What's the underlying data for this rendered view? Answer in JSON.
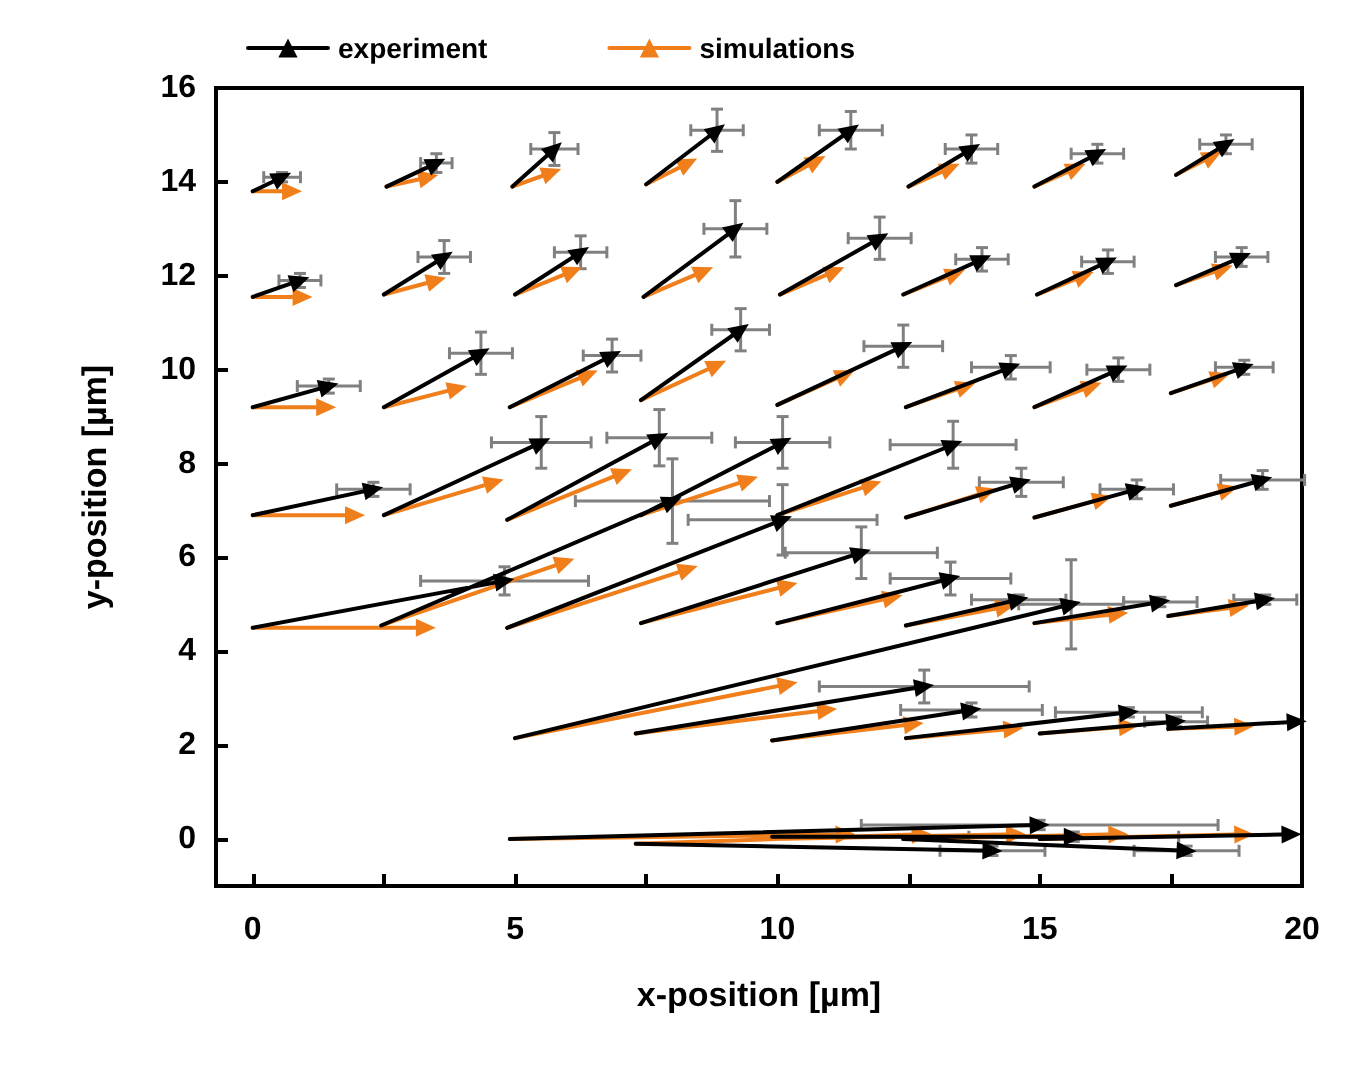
{
  "chart_data": {
    "type": "line",
    "xlabel": "x-position [µm]",
    "ylabel": "y-position [µm]",
    "xlim": [
      -0.7,
      20
    ],
    "xticks": [
      0,
      {
        "value": 2.5,
        "label": null
      },
      5,
      {
        "value": 7.5,
        "label": null
      },
      10,
      {
        "value": 12.5,
        "label": null
      },
      15,
      {
        "value": 17.5,
        "label": null
      },
      20
    ],
    "ylim": [
      -1,
      16
    ],
    "yticks": [
      0,
      2,
      4,
      6,
      8,
      10,
      12,
      14,
      16
    ],
    "legend": "top left",
    "line_style": "solid",
    "series": [
      {
        "name": "experiment",
        "color": "#000000",
        "x": [
          0,
          0.56,
          null,
          2.55,
          3.5,
          null,
          4.95,
          5.75,
          null,
          7.5,
          8.85,
          null,
          10,
          11.4,
          null,
          12.5,
          13.7,
          null,
          14.9,
          16.1,
          null,
          17.6,
          18.55,
          null,
          0,
          0.9,
          null,
          2.5,
          3.65,
          null,
          5,
          6.25,
          null,
          7.45,
          9.2,
          null,
          10.05,
          11.95,
          null,
          12.4,
          13.9,
          null,
          14.95,
          16.3,
          null,
          17.6,
          18.85,
          null,
          0,
          1.45,
          null,
          2.5,
          4.35,
          null,
          4.9,
          6.85,
          null,
          7.4,
          9.3,
          null,
          10,
          12.4,
          null,
          12.45,
          14.45,
          null,
          14.9,
          16.5,
          null,
          17.5,
          18.9,
          null,
          0,
          2.3,
          null,
          2.5,
          5.5,
          null,
          4.85,
          7.75,
          null,
          7.4,
          10.1,
          null,
          10,
          13.35,
          null,
          12.45,
          14.65,
          null,
          14.9,
          16.85,
          null,
          17.5,
          19.25,
          null,
          0,
          4.8,
          null,
          2.45,
          8,
          null,
          4.85,
          10.1,
          null,
          7.4,
          11.6,
          null,
          10,
          13.3,
          null,
          12.45,
          14.6,
          null,
          14.9,
          17.3,
          null,
          17.45,
          19.3,
          null,
          5,
          15.6,
          null,
          7.3,
          12.8,
          null,
          9.9,
          13.7,
          null,
          12.45,
          16.7,
          null,
          15,
          17.6,
          null,
          17.45,
          19.9,
          null,
          4.9,
          15,
          null,
          7.3,
          14.1,
          null,
          9.9,
          15.65,
          null,
          12.4,
          17.8,
          null,
          15,
          19.8
        ],
        "values": [
          13.8,
          14.1,
          null,
          13.9,
          14.4,
          null,
          13.9,
          14.7,
          null,
          13.95,
          15.1,
          null,
          14,
          15.1,
          null,
          13.9,
          14.7,
          null,
          13.9,
          14.6,
          null,
          14.15,
          14.8,
          null,
          11.55,
          11.9,
          null,
          11.6,
          12.4,
          null,
          11.6,
          12.5,
          null,
          11.55,
          13,
          null,
          11.6,
          12.8,
          null,
          11.6,
          12.35,
          null,
          11.6,
          12.3,
          null,
          11.8,
          12.4,
          null,
          9.2,
          9.65,
          null,
          9.2,
          10.35,
          null,
          9.2,
          10.3,
          null,
          9.35,
          10.85,
          null,
          9.25,
          10.5,
          null,
          9.2,
          10.05,
          null,
          9.2,
          10,
          null,
          9.5,
          10.05,
          null,
          6.9,
          7.45,
          null,
          6.9,
          8.45,
          null,
          6.8,
          8.55,
          null,
          6.9,
          8.45,
          null,
          6.9,
          8.4,
          null,
          6.85,
          7.6,
          null,
          6.85,
          7.45,
          null,
          7.1,
          7.65,
          null,
          4.5,
          5.5,
          null,
          4.55,
          7.2,
          null,
          4.5,
          6.8,
          null,
          4.6,
          6.1,
          null,
          4.6,
          5.55,
          null,
          4.55,
          5.1,
          null,
          4.6,
          5.05,
          null,
          4.75,
          5.1,
          null,
          2.15,
          5,
          null,
          2.25,
          3.25,
          null,
          2.1,
          2.75,
          null,
          2.15,
          2.7,
          null,
          2.25,
          2.5,
          null,
          2.35,
          2.5,
          null,
          0,
          0.3,
          null,
          -0.1,
          -0.25,
          null,
          0.05,
          0.05,
          null,
          0,
          -0.25,
          null,
          0,
          0.1
        ],
        "xerrors": [
          null,
          0.35,
          null,
          null,
          0.3,
          null,
          null,
          0.45,
          null,
          null,
          0.5,
          null,
          null,
          0.6,
          null,
          null,
          0.5,
          null,
          null,
          0.5,
          null,
          null,
          0.5,
          null,
          null,
          0.4,
          null,
          null,
          0.5,
          null,
          null,
          0.5,
          null,
          null,
          0.6,
          null,
          null,
          0.6,
          null,
          null,
          0.5,
          null,
          null,
          0.5,
          null,
          null,
          0.5,
          null,
          null,
          0.6,
          null,
          null,
          0.6,
          null,
          null,
          0.55,
          null,
          null,
          0.55,
          null,
          null,
          0.75,
          null,
          null,
          0.75,
          null,
          null,
          0.6,
          null,
          null,
          0.55,
          null,
          null,
          0.7,
          null,
          null,
          0.95,
          null,
          null,
          1,
          null,
          null,
          0.9,
          null,
          null,
          1.2,
          null,
          null,
          0.8,
          null,
          null,
          0.7,
          null,
          null,
          0.8,
          null,
          null,
          1.6,
          null,
          null,
          1.85,
          null,
          null,
          1.8,
          null,
          null,
          1.45,
          null,
          null,
          1.15,
          null,
          null,
          0.9,
          null,
          null,
          0.7,
          null,
          null,
          0.6,
          null,
          null,
          1,
          null,
          null,
          2,
          null,
          null,
          1.35,
          null,
          null,
          1.4,
          null,
          null,
          0.6,
          null,
          null,
          null,
          null,
          null,
          3.4,
          null,
          null,
          1,
          null,
          null,
          2,
          null,
          null,
          1,
          null,
          null,
          null
        ],
        "errors": [
          null,
          0.1,
          null,
          null,
          0.2,
          null,
          null,
          0.35,
          null,
          null,
          0.45,
          null,
          null,
          0.4,
          null,
          null,
          0.3,
          null,
          null,
          0.2,
          null,
          null,
          0.2,
          null,
          null,
          0.15,
          null,
          null,
          0.35,
          null,
          null,
          0.35,
          null,
          null,
          0.6,
          null,
          null,
          0.45,
          null,
          null,
          0.25,
          null,
          null,
          0.25,
          null,
          null,
          0.2,
          null,
          null,
          0.15,
          null,
          null,
          0.45,
          null,
          null,
          0.35,
          null,
          null,
          0.45,
          null,
          null,
          0.45,
          null,
          null,
          0.25,
          null,
          null,
          0.25,
          null,
          null,
          0.15,
          null,
          null,
          0.15,
          null,
          null,
          0.55,
          null,
          null,
          0.6,
          null,
          null,
          0.55,
          null,
          null,
          0.5,
          null,
          null,
          0.3,
          null,
          null,
          0.2,
          null,
          null,
          0.2,
          null,
          null,
          0.3,
          null,
          null,
          0.9,
          null,
          null,
          0.75,
          null,
          null,
          0.55,
          null,
          null,
          0.35,
          null,
          null,
          0.1,
          null,
          null,
          0.1,
          null,
          null,
          0.1,
          null,
          null,
          0.95,
          null,
          null,
          0.35,
          null,
          null,
          0.15,
          null,
          null,
          0.1,
          null,
          null,
          0.1,
          null,
          null,
          null,
          null,
          null,
          0.1,
          null,
          null,
          0.1,
          null,
          null,
          0.1,
          null,
          null,
          0.1,
          null,
          null,
          null
        ]
      },
      {
        "name": "simulations",
        "color": "#f07f1b",
        "x": [
          0,
          0.75,
          null,
          2.55,
          3.35,
          null,
          4.95,
          5.7,
          null,
          7.5,
          8.3,
          null,
          10,
          10.75,
          null,
          12.5,
          13.3,
          null,
          14.9,
          15.7,
          null,
          17.6,
          18.3,
          null,
          0,
          0.95,
          null,
          2.5,
          3.5,
          null,
          5,
          6.1,
          null,
          7.45,
          8.6,
          null,
          10.05,
          11.1,
          null,
          12.4,
          13.4,
          null,
          14.95,
          15.85,
          null,
          17.6,
          18.5,
          null,
          0,
          1.4,
          null,
          2.5,
          3.9,
          null,
          4.9,
          6.4,
          null,
          7.4,
          8.85,
          null,
          10,
          11.3,
          null,
          12.45,
          13.6,
          null,
          14.9,
          16,
          null,
          17.5,
          18.45,
          null,
          0,
          1.95,
          null,
          2.5,
          4.6,
          null,
          4.85,
          7.05,
          null,
          7.4,
          9.45,
          null,
          10,
          11.8,
          null,
          12.45,
          14,
          null,
          14.9,
          16.2,
          null,
          17.5,
          18.6,
          null,
          0,
          3.3,
          null,
          2.45,
          5.95,
          null,
          4.85,
          8.3,
          null,
          7.4,
          10.2,
          null,
          10,
          12.2,
          null,
          12.45,
          14.35,
          null,
          14.9,
          16.5,
          null,
          17.45,
          18.8,
          null,
          5,
          10.2,
          null,
          7.3,
          10.95,
          null,
          9.9,
          12.6,
          null,
          12.45,
          14.5,
          null,
          15,
          16.7,
          null,
          17.45,
          18.9,
          null,
          4.9,
          11.3,
          null,
          7.3,
          12.75,
          null,
          9.9,
          14.55,
          null,
          12.4,
          16.5,
          null,
          15,
          18.9
        ],
        "values": [
          13.8,
          13.8,
          null,
          13.9,
          14.1,
          null,
          13.9,
          14.2,
          null,
          13.95,
          14.4,
          null,
          14,
          14.45,
          null,
          13.9,
          14.3,
          null,
          13.9,
          14.3,
          null,
          14.15,
          14.55,
          null,
          11.55,
          11.55,
          null,
          11.6,
          11.9,
          null,
          11.6,
          12.1,
          null,
          11.55,
          12.1,
          null,
          11.6,
          12.1,
          null,
          11.6,
          12.05,
          null,
          11.6,
          12,
          null,
          11.8,
          12.15,
          null,
          9.2,
          9.2,
          null,
          9.2,
          9.6,
          null,
          9.2,
          9.9,
          null,
          9.35,
          10.1,
          null,
          9.25,
          9.9,
          null,
          9.2,
          9.65,
          null,
          9.2,
          9.65,
          null,
          9.5,
          9.85,
          null,
          6.9,
          6.9,
          null,
          6.9,
          7.6,
          null,
          6.8,
          7.8,
          null,
          6.9,
          7.65,
          null,
          6.9,
          7.55,
          null,
          6.85,
          7.4,
          null,
          6.85,
          7.25,
          null,
          7.1,
          7.45,
          null,
          4.5,
          4.5,
          null,
          4.55,
          5.9,
          null,
          4.5,
          5.75,
          null,
          4.6,
          5.4,
          null,
          4.6,
          5.15,
          null,
          4.55,
          4.95,
          null,
          4.6,
          4.8,
          null,
          4.75,
          4.95,
          null,
          2.15,
          3.3,
          null,
          2.25,
          2.75,
          null,
          2.1,
          2.45,
          null,
          2.15,
          2.35,
          null,
          2.25,
          2.4,
          null,
          2.35,
          2.4,
          null,
          0,
          0.1,
          null,
          -0.1,
          0.1,
          null,
          0,
          0.1,
          null,
          0,
          0.1,
          null,
          0,
          0.1
        ]
      }
    ]
  }
}
